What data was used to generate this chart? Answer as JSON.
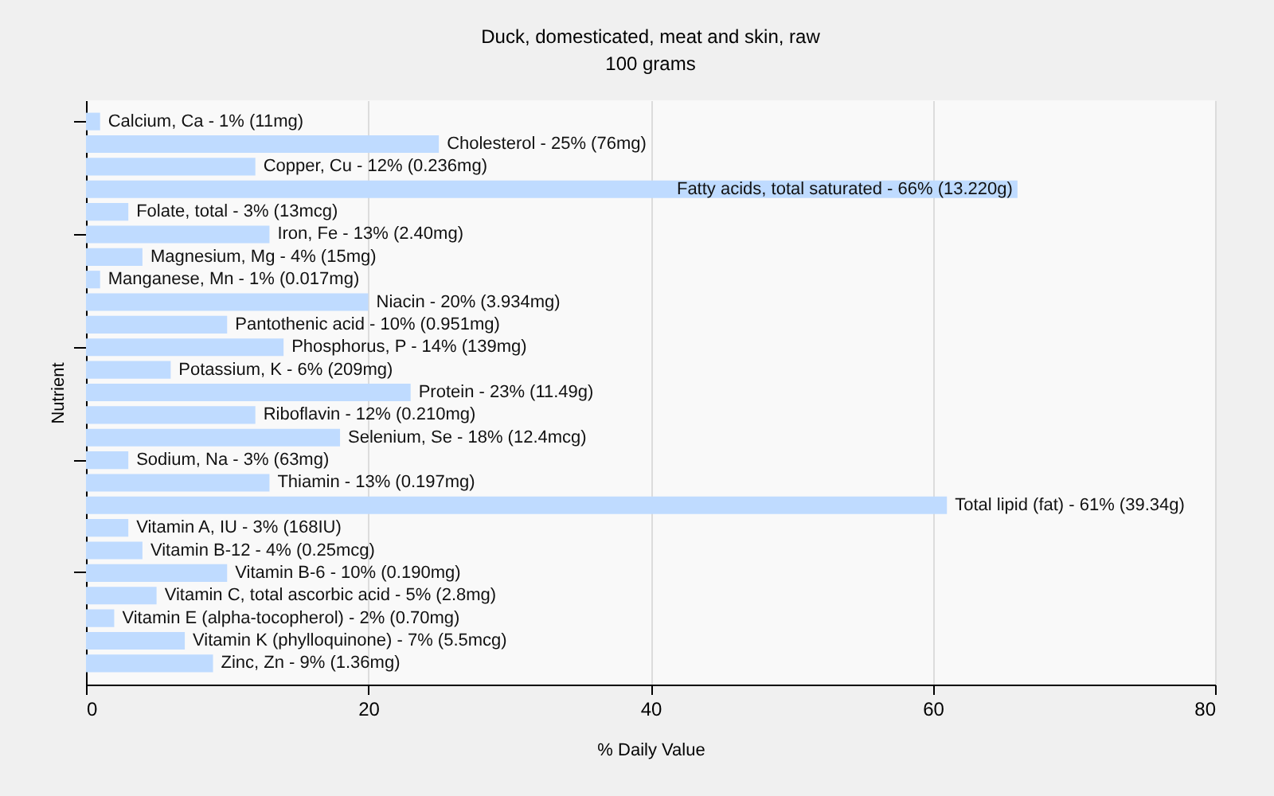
{
  "chart_data": {
    "type": "bar",
    "orientation": "horizontal",
    "title": "Duck, domesticated, meat and skin, raw",
    "subtitle": "100 grams",
    "xlabel": "% Daily Value",
    "ylabel": "Nutrient",
    "categories": [
      "Calcium, Ca - 1% (11mg)",
      "Cholesterol - 25% (76mg)",
      "Copper, Cu - 12% (0.236mg)",
      "Fatty acids, total saturated - 66% (13.220g)",
      "Folate, total - 3% (13mcg)",
      "Iron, Fe - 13% (2.40mg)",
      "Magnesium, Mg - 4% (15mg)",
      "Manganese, Mn - 1% (0.017mg)",
      "Niacin - 20% (3.934mg)",
      "Pantothenic acid - 10% (0.951mg)",
      "Phosphorus, P - 14% (139mg)",
      "Potassium, K - 6% (209mg)",
      "Protein - 23% (11.49g)",
      "Riboflavin - 12% (0.210mg)",
      "Selenium, Se - 18% (12.4mcg)",
      "Sodium, Na - 3% (63mg)",
      "Thiamin - 13% (0.197mg)",
      "Total lipid (fat) - 61% (39.34g)",
      "Vitamin A, IU - 3% (168IU)",
      "Vitamin B-12 - 4% (0.25mcg)",
      "Vitamin B-6 - 10% (0.190mg)",
      "Vitamin C, total ascorbic acid - 5% (2.8mg)",
      "Vitamin E (alpha-tocopherol) - 2% (0.70mg)",
      "Vitamin K (phylloquinone) - 7% (5.5mcg)",
      "Zinc, Zn - 9% (1.36mg)"
    ],
    "values": [
      1,
      25,
      12,
      66,
      3,
      13,
      4,
      1,
      20,
      10,
      14,
      6,
      23,
      12,
      18,
      3,
      13,
      61,
      3,
      4,
      10,
      5,
      2,
      7,
      9
    ],
    "color": "#bfdbff",
    "xlim": [
      0,
      80
    ],
    "xticks": [
      0,
      20,
      40,
      60,
      80
    ],
    "grid": "x",
    "tick_labels": "x"
  }
}
